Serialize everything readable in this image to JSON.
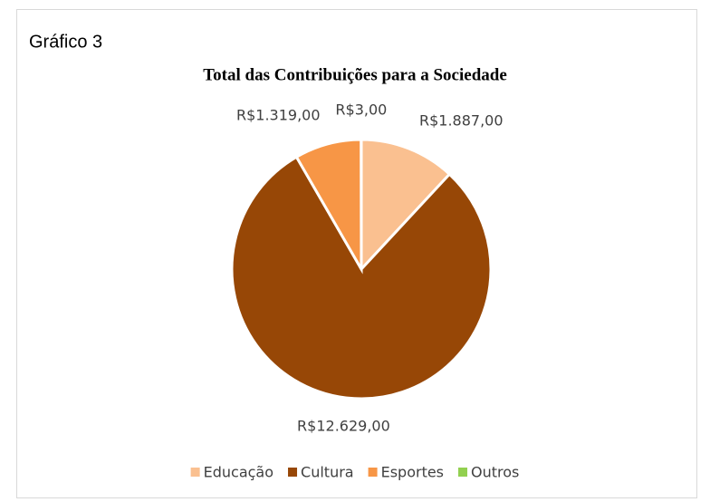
{
  "chart_data": {
    "type": "pie",
    "caption": "Gráfico 3",
    "title": "Total das Contribuições para a Sociedade",
    "categories": [
      "Educação",
      "Cultura",
      "Esportes",
      "Outros"
    ],
    "values": [
      1887,
      12629,
      1319,
      3
    ],
    "value_labels": [
      "R$1.887,00",
      "R$12.629,00",
      "R$1.319,00",
      "R$3,00"
    ],
    "colors": [
      "#fac090",
      "#974706",
      "#f79646",
      "#92d050"
    ],
    "legend": "bottom"
  }
}
